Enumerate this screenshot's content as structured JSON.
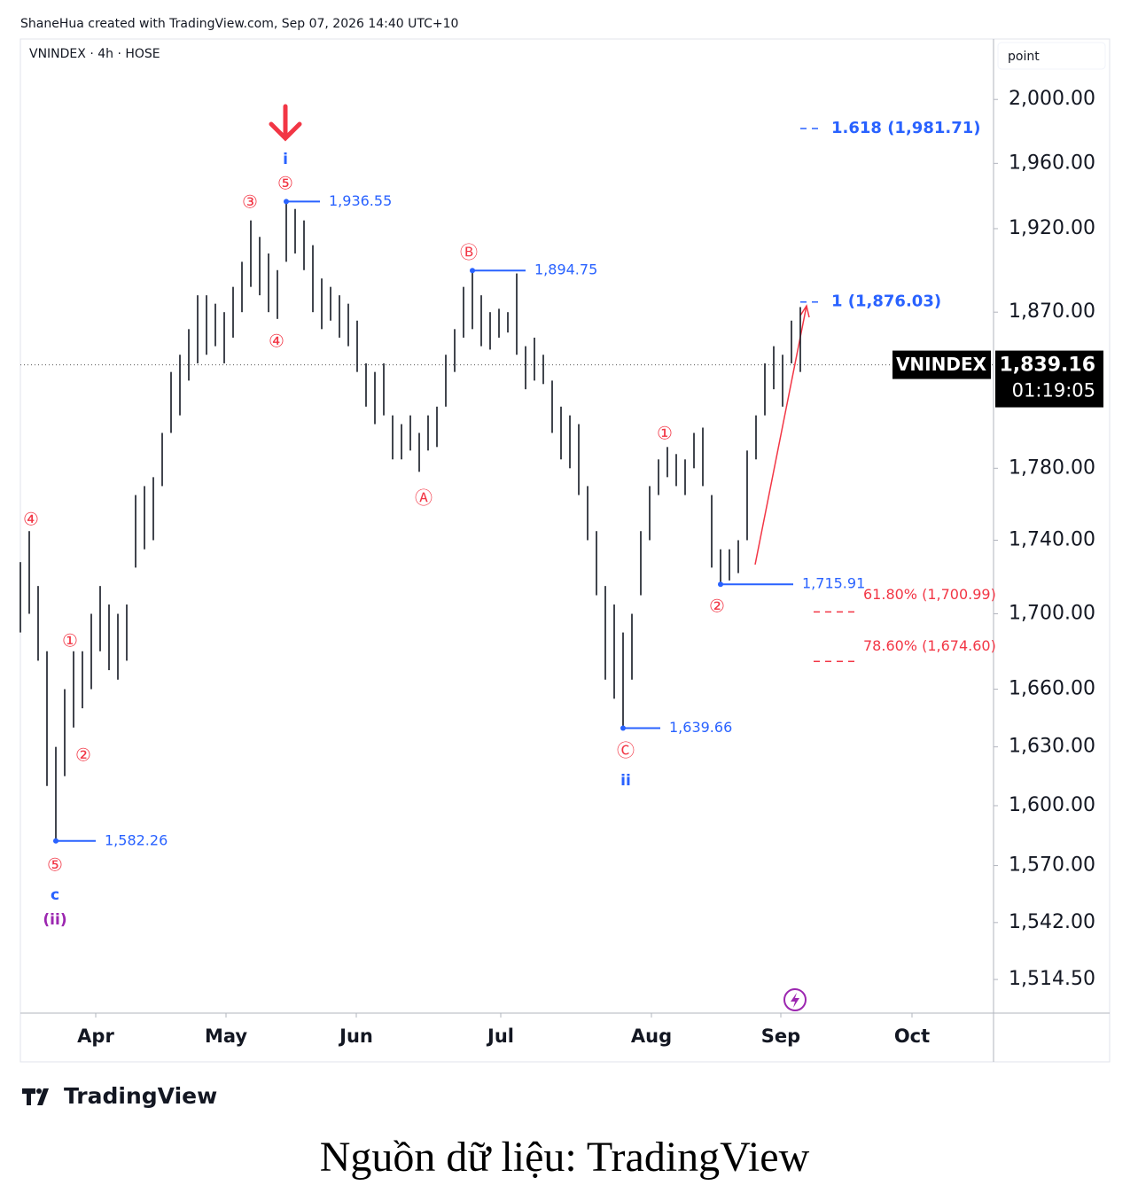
{
  "header": {
    "credit": "ShaneHua created with TradingView.com, Sep 07, 2026 14:40 UTC+10",
    "symbol_line": "VNINDEX · 4h · HOSE",
    "scale_button": "point"
  },
  "chart_data": {
    "type": "ohlc_range",
    "log_scale": true,
    "x": [
      0,
      2,
      4,
      6,
      8,
      10,
      12,
      14,
      16,
      18,
      20,
      22,
      24,
      26,
      28,
      30,
      32,
      34,
      36,
      38,
      40,
      42,
      44,
      46,
      48,
      50,
      52,
      54,
      56,
      58,
      60,
      62,
      64,
      66,
      68,
      70,
      72,
      74,
      76,
      78,
      80,
      82,
      84,
      86,
      88,
      90,
      92,
      94,
      96,
      98,
      100,
      102,
      104,
      106,
      108,
      110,
      112,
      114,
      116,
      118,
      120,
      122,
      124,
      126,
      128,
      130,
      132,
      134,
      136,
      138,
      140,
      142,
      144,
      146,
      148,
      150,
      152,
      154,
      156,
      158,
      160,
      162,
      164,
      166,
      168,
      170,
      172,
      174,
      176
    ],
    "lows": [
      1690,
      1700,
      1675,
      1610,
      1582.26,
      1615,
      1640,
      1650,
      1660,
      1680,
      1670,
      1665,
      1675,
      1725,
      1735,
      1740,
      1770,
      1800,
      1810,
      1830,
      1840,
      1845,
      1850,
      1840,
      1855,
      1870,
      1885,
      1880,
      1870,
      1866,
      1900,
      1905,
      1895,
      1870,
      1860,
      1865,
      1855,
      1850,
      1835,
      1815,
      1805,
      1810,
      1785,
      1785,
      1790,
      1778,
      1790,
      1792,
      1815,
      1835,
      1855,
      1860,
      1850,
      1848,
      1855,
      1858,
      1845,
      1825,
      1830,
      1828,
      1800,
      1785,
      1780,
      1765,
      1740,
      1710,
      1665,
      1655,
      1639.66,
      1665,
      1710,
      1740,
      1765,
      1775,
      1770,
      1765,
      1780,
      1770,
      1725,
      1715.91,
      1718,
      1722,
      1740,
      1785,
      1810,
      1825,
      1815,
      1840,
      1835
    ],
    "highs": [
      1728,
      1745,
      1715,
      1680,
      1630,
      1660,
      1680,
      1680,
      1700,
      1715,
      1705,
      1700,
      1705,
      1765,
      1770,
      1775,
      1800,
      1835,
      1845,
      1860,
      1880,
      1880,
      1875,
      1870,
      1885,
      1900,
      1925,
      1915,
      1905,
      1895,
      1936.55,
      1932,
      1925,
      1910,
      1890,
      1885,
      1880,
      1875,
      1865,
      1840,
      1835,
      1840,
      1810,
      1805,
      1810,
      1800,
      1810,
      1815,
      1845,
      1860,
      1885,
      1894.75,
      1880,
      1870,
      1872,
      1870,
      1893,
      1850,
      1855,
      1845,
      1830,
      1815,
      1810,
      1805,
      1770,
      1745,
      1715,
      1705,
      1690,
      1700,
      1745,
      1770,
      1785,
      1792,
      1788,
      1785,
      1800,
      1803,
      1765,
      1735,
      1735,
      1740,
      1790,
      1810,
      1840,
      1850,
      1845,
      1865,
      1873
    ],
    "color": "#131722",
    "xlim": [
      0,
      219.4
    ],
    "xticks": [
      {
        "value": 17,
        "label": "Apr"
      },
      {
        "value": 46.4,
        "label": "May"
      },
      {
        "value": 75.8,
        "label": "Jun"
      },
      {
        "value": 108.4,
        "label": "Jul"
      },
      {
        "value": 142.4,
        "label": "Aug"
      },
      {
        "value": 171.6,
        "label": "Sep"
      },
      {
        "value": 201.2,
        "label": "Oct"
      }
    ],
    "ylim": [
      1498.5,
      2038
    ],
    "yticks": [
      {
        "value": 2000,
        "label": "2,000.00"
      },
      {
        "value": 1960,
        "label": "1,960.00"
      },
      {
        "value": 1920,
        "label": "1,920.00"
      },
      {
        "value": 1870,
        "label": "1,870.00"
      },
      {
        "value": 1780,
        "label": "1,780.00"
      },
      {
        "value": 1740,
        "label": "1,740.00"
      },
      {
        "value": 1700,
        "label": "1,700.00"
      },
      {
        "value": 1660,
        "label": "1,660.00"
      },
      {
        "value": 1630,
        "label": "1,630.00"
      },
      {
        "value": 1600,
        "label": "1,600.00"
      },
      {
        "value": 1570,
        "label": "1,570.00"
      },
      {
        "value": 1542,
        "label": "1,542.00"
      },
      {
        "value": 1514.5,
        "label": "1,514.50"
      }
    ],
    "current": {
      "symbol": "VNINDEX",
      "value": 1839.16,
      "label": "1,839.16",
      "countdown": "01:19:05"
    },
    "levels": {
      "values": [
        1582.26,
        1936.55,
        1894.75,
        1639.66,
        1715.91
      ],
      "value_labels": [
        "1,582.26",
        "1,936.55",
        "1,894.75",
        "1,639.66",
        "1,715.91"
      ],
      "bars": [
        4,
        30,
        51,
        68,
        79
      ],
      "color": "#2962ff"
    },
    "fib": {
      "values": [
        1981.71,
        1876.03,
        1700.99,
        1674.6
      ],
      "value_labels": [
        "1.618 (1,981.71)",
        "1 (1,876.03)",
        "61.80% (1,700.99)",
        "78.60% (1,674.60)"
      ],
      "colors": [
        "#2962ff",
        "#2962ff",
        "#f23645",
        "#f23645"
      ]
    },
    "wave_labels": {
      "texts": [
        "④",
        "①",
        "②",
        "⑤",
        "c",
        "(ii)",
        "③",
        "⑤",
        "i",
        "④",
        "Ⓑ",
        "Ⓐ",
        "①",
        "Ⓒ",
        "ii",
        "②"
      ],
      "colors": [
        "#f23645",
        "#f23645",
        "#f23645",
        "#f23645",
        "#2962ff",
        "#9c27b0",
        "#f23645",
        "#f23645",
        "#2962ff",
        "#f23645",
        "#f23645",
        "#f23645",
        "#f23645",
        "#f23645",
        "#2962ff",
        "#f23645"
      ]
    }
  },
  "footer": {
    "logo": "TradingView",
    "caption": "Nguồn dữ liệu: TradingView"
  }
}
